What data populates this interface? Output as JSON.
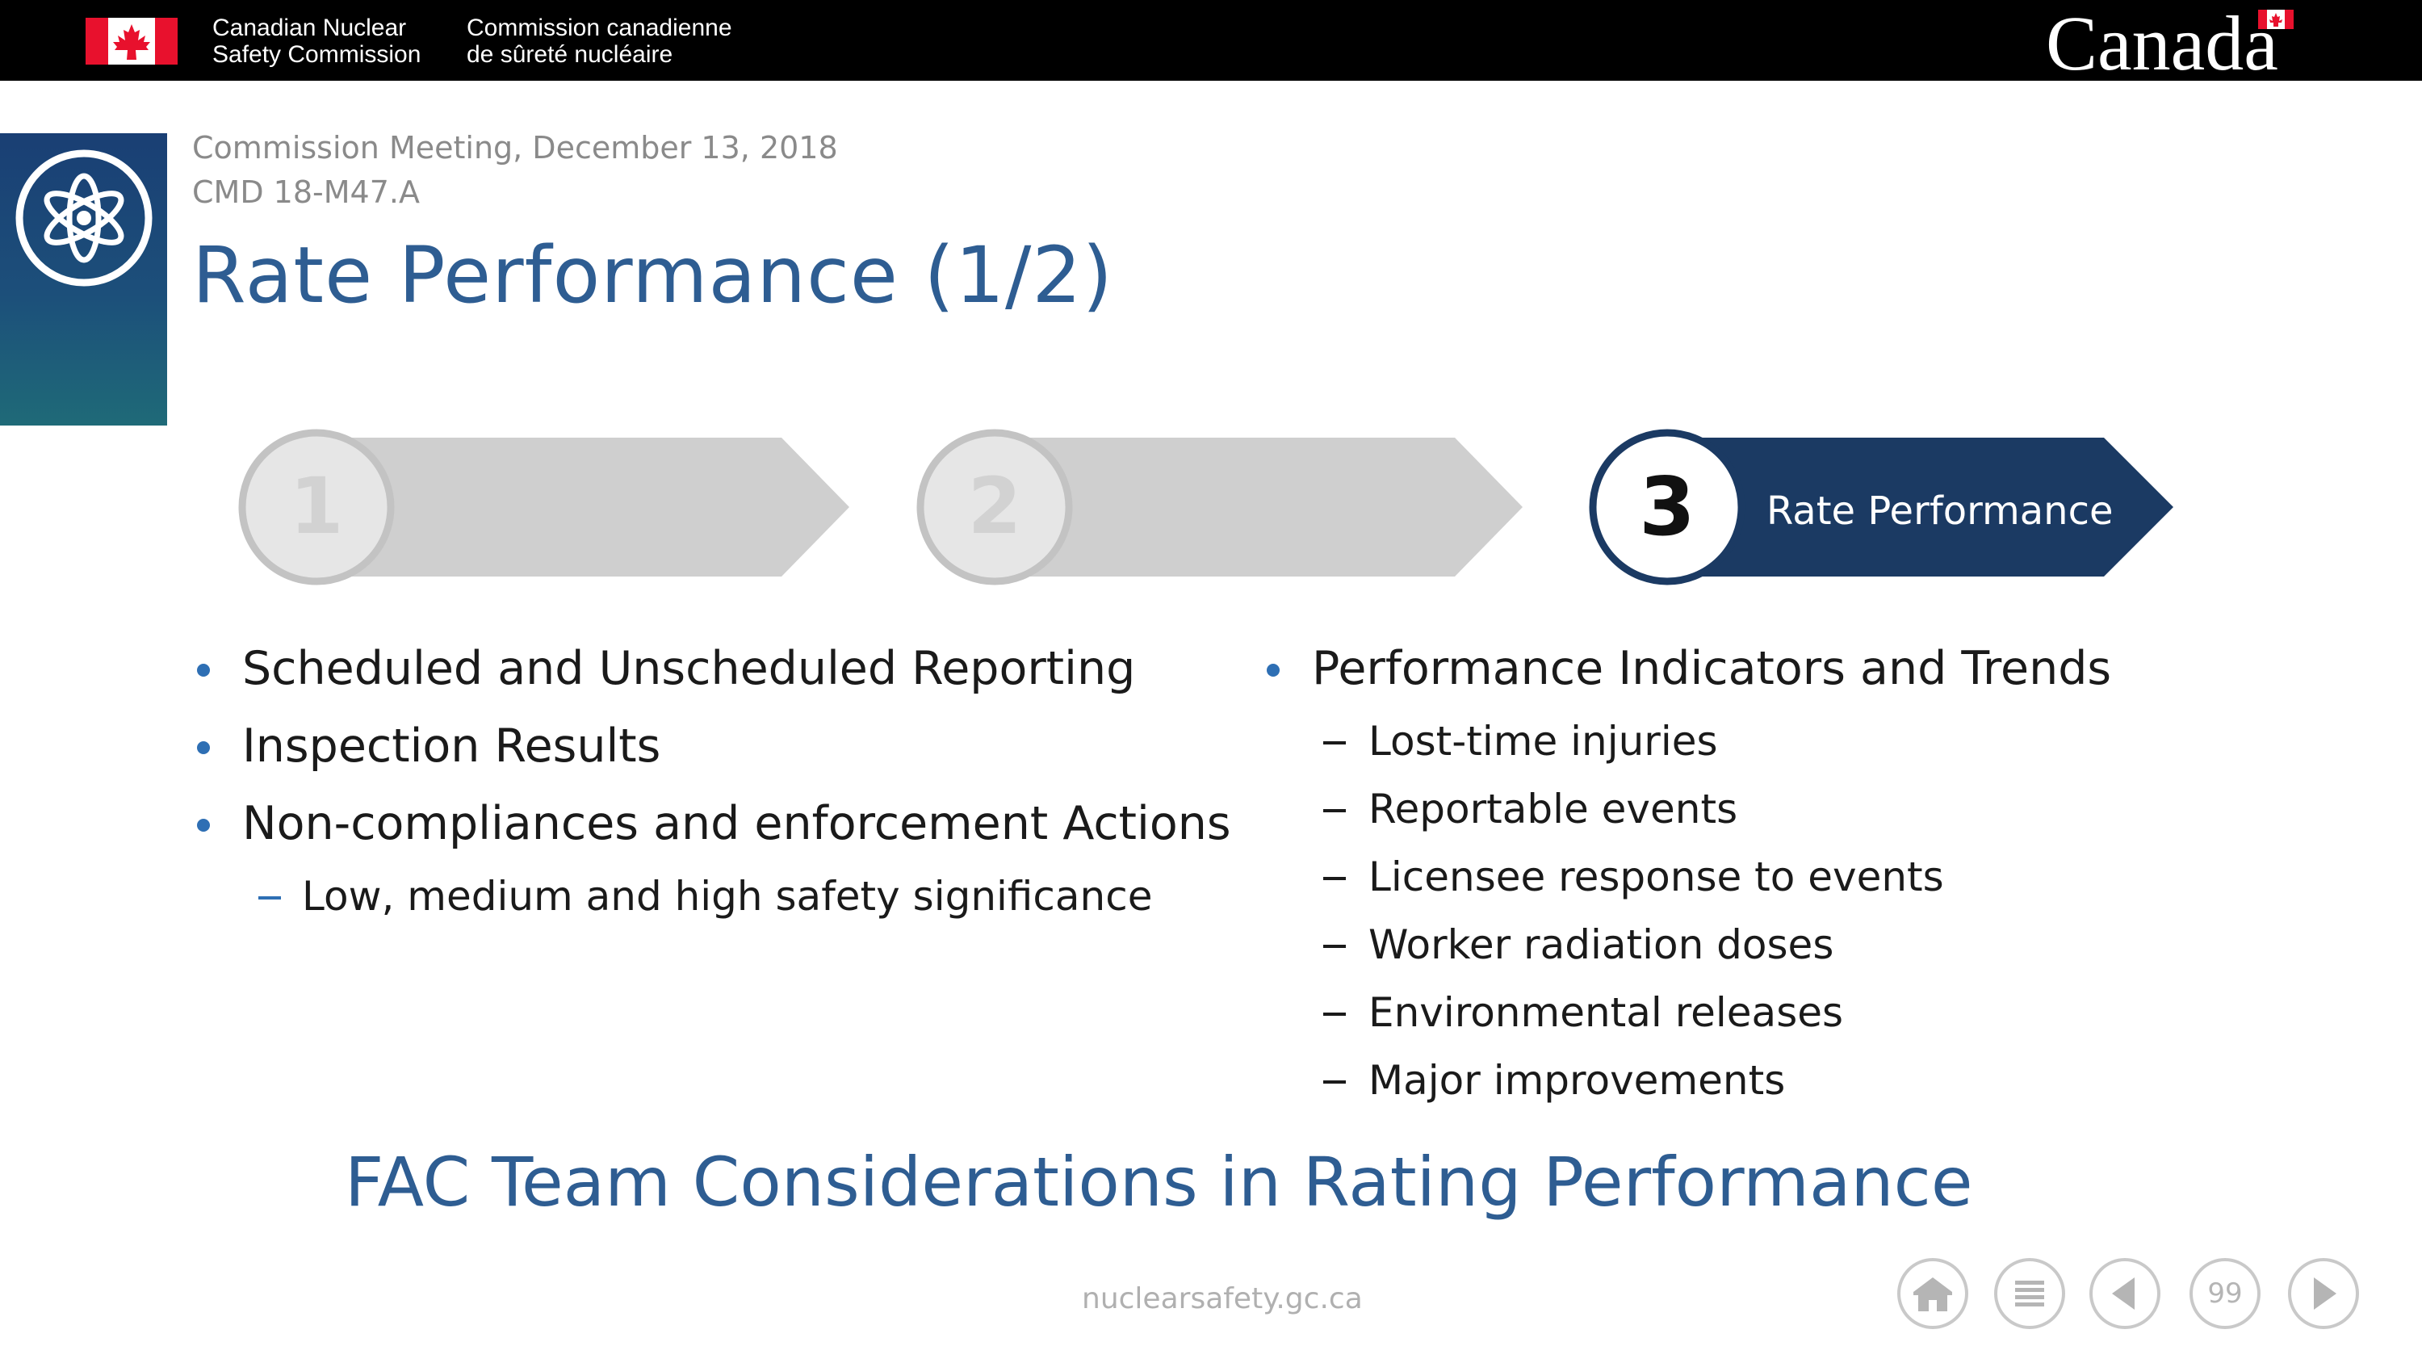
{
  "header": {
    "org_en": [
      "Canadian Nuclear",
      "Safety Commission"
    ],
    "org_fr": [
      "Commission canadienne",
      "de sûreté nucléaire"
    ],
    "wordmark": "Canada"
  },
  "slide": {
    "meeting": "Commission Meeting, December 13, 2018",
    "cmd": "CMD 18-M47.A",
    "title": "Rate Performance (1/2)"
  },
  "steps": [
    {
      "number": "1",
      "label": "",
      "active": false
    },
    {
      "number": "2",
      "label": "",
      "active": false
    },
    {
      "number": "3",
      "label": "Rate Performance",
      "active": true
    }
  ],
  "left_column": {
    "items": [
      "Scheduled and Unscheduled Reporting",
      "Inspection Results",
      "Non-compliances and enforcement Actions"
    ],
    "subitems": [
      "Low, medium and high safety significance"
    ]
  },
  "right_column": {
    "heading": "Performance Indicators and Trends",
    "subitems": [
      "Lost-time injuries",
      "Reportable events",
      "Licensee response to events",
      "Worker radiation doses",
      "Environmental releases",
      "Major improvements"
    ]
  },
  "bottom_heading": "FAC Team Considerations in Rating Performance",
  "footer": {
    "url": "nuclearsafety.gc.ca",
    "page_number": "99",
    "nav_icons": [
      "home-icon",
      "menu-icon",
      "previous-icon",
      "page-number",
      "next-icon"
    ]
  },
  "colors": {
    "title_blue": "#2e5d92",
    "active_step": "#1b3a63",
    "inactive_step": "#cfcfcf",
    "bullet_blue": "#2e6fb4"
  }
}
